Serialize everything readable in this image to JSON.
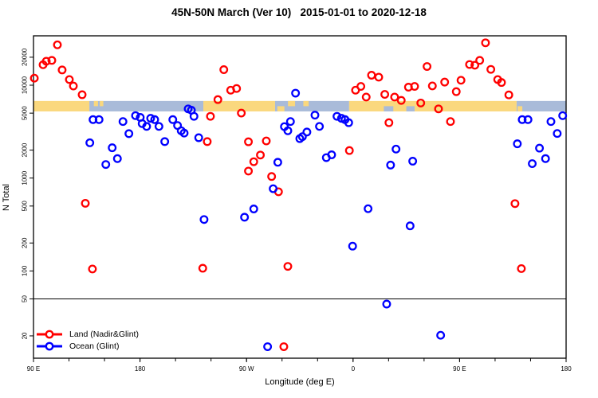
{
  "chart_data": {
    "type": "scatter",
    "title": "45N-50N March (Ver 10)   2015-01-01 to 2020-12-18",
    "xlabel": "Longitude (deg E)",
    "ylabel": "N Total",
    "x_axis": {
      "range": [
        90,
        540
      ],
      "minor_tick_step": 30,
      "ticks": [
        {
          "pos": 90,
          "label": "90 E"
        },
        {
          "pos": 180,
          "label": "180"
        },
        {
          "pos": 270,
          "label": "90 W"
        },
        {
          "pos": 360,
          "label": "0"
        },
        {
          "pos": 450,
          "label": "90 E"
        },
        {
          "pos": 540,
          "label": "180"
        }
      ]
    },
    "y_axis": {
      "scale": "log",
      "range": [
        11.5,
        34000
      ],
      "ticks": [
        {
          "pos": 20000,
          "label": "20000"
        },
        {
          "pos": 10000,
          "label": "10000"
        },
        {
          "pos": 5000,
          "label": "5000"
        },
        {
          "pos": 2000,
          "label": "2000"
        },
        {
          "pos": 1000,
          "label": "1000"
        },
        {
          "pos": 500,
          "label": "500"
        },
        {
          "pos": 200,
          "label": "200"
        },
        {
          "pos": 100,
          "label": "100"
        },
        {
          "pos": 50,
          "label": "50"
        },
        {
          "pos": 20,
          "label": "20"
        }
      ]
    },
    "reference_line": {
      "y": 50,
      "color": "#000000"
    },
    "map_band": {
      "value_top": 6760,
      "value_bottom": 5220,
      "colors": {
        "land": "#fad87e",
        "ocean": "#a9bbd9"
      },
      "segments": [
        {
          "from": 90,
          "to": 137.2,
          "type": "land"
        },
        {
          "from": 137.2,
          "to": 233.5,
          "type": "ocean"
        },
        {
          "from": 233.5,
          "to": 294.1,
          "type": "land"
        },
        {
          "from": 294.1,
          "to": 356.7,
          "type": "ocean"
        },
        {
          "from": 356.7,
          "to": 498.2,
          "type": "land"
        },
        {
          "from": 498.2,
          "to": 540,
          "type": "ocean"
        }
      ],
      "patches": [
        {
          "from": 141,
          "to": 144.5,
          "type": "land",
          "band": "top"
        },
        {
          "from": 146,
          "to": 149,
          "type": "land",
          "band": "top"
        },
        {
          "from": 296,
          "to": 302,
          "type": "land",
          "band": "bottom"
        },
        {
          "from": 305,
          "to": 311,
          "type": "land",
          "band": "top"
        },
        {
          "from": 318,
          "to": 322.5,
          "type": "land",
          "band": "top"
        },
        {
          "from": 386,
          "to": 394,
          "type": "ocean",
          "band": "bottom"
        },
        {
          "from": 405,
          "to": 412,
          "type": "ocean",
          "band": "bottom"
        },
        {
          "from": 499,
          "to": 503,
          "type": "land",
          "band": "bottom"
        }
      ]
    },
    "series": [
      {
        "name": "Land (Nadir&Glint)",
        "color": "#ff0000",
        "points": [
          [
            90.7,
            11900
          ],
          [
            98.1,
            16600
          ],
          [
            100.8,
            18100
          ],
          [
            105.5,
            18500
          ],
          [
            110.2,
            27200
          ],
          [
            114.2,
            14600
          ],
          [
            120.3,
            11500
          ],
          [
            123.7,
            9800
          ],
          [
            131.1,
            7900
          ],
          [
            133.8,
            535
          ],
          [
            139.8,
            105
          ],
          [
            233,
            107
          ],
          [
            236.8,
            2470
          ],
          [
            239.5,
            4620
          ],
          [
            245.8,
            7000
          ],
          [
            250.8,
            14700
          ],
          [
            256.6,
            8830
          ],
          [
            261.6,
            9210
          ],
          [
            265.6,
            5010
          ],
          [
            271.6,
            2460
          ],
          [
            271.6,
            1190
          ],
          [
            276.1,
            1500
          ],
          [
            281.7,
            1770
          ],
          [
            286.7,
            2510
          ],
          [
            291.2,
            1040
          ],
          [
            297,
            712
          ],
          [
            301.5,
            15.3
          ],
          [
            304.9,
            112
          ],
          [
            356.9,
            1980
          ],
          [
            362.1,
            8830
          ],
          [
            366.6,
            9700
          ],
          [
            371.1,
            7450
          ],
          [
            375.6,
            12800
          ],
          [
            381.7,
            12200
          ],
          [
            386.8,
            7960
          ],
          [
            390.3,
            3950
          ],
          [
            395.1,
            7450
          ],
          [
            400.7,
            6860
          ],
          [
            406.8,
            9520
          ],
          [
            412,
            9700
          ],
          [
            417.2,
            6430
          ],
          [
            422.5,
            15900
          ],
          [
            427,
            9820
          ],
          [
            432.2,
            5560
          ],
          [
            437.4,
            10800
          ],
          [
            442.3,
            4060
          ],
          [
            447.2,
            8520
          ],
          [
            451.2,
            11300
          ],
          [
            458.4,
            16700
          ],
          [
            462.9,
            16400
          ],
          [
            467,
            18500
          ],
          [
            471.9,
            28600
          ],
          [
            476.4,
            14800
          ],
          [
            482.2,
            11500
          ],
          [
            485.4,
            10700
          ],
          [
            491.6,
            7860
          ],
          [
            496.8,
            531
          ],
          [
            502.2,
            106
          ]
        ]
      },
      {
        "name": "Ocean (Glint)",
        "color": "#0000ff",
        "points": [
          [
            137.6,
            2400
          ],
          [
            140.3,
            4260
          ],
          [
            145.4,
            4260
          ],
          [
            151.1,
            1400
          ],
          [
            156.5,
            2120
          ],
          [
            160.9,
            1620
          ],
          [
            165.6,
            4060
          ],
          [
            170.6,
            3010
          ],
          [
            176.2,
            4700
          ],
          [
            180.2,
            4500
          ],
          [
            181.8,
            3860
          ],
          [
            185.6,
            3600
          ],
          [
            189,
            4400
          ],
          [
            192.4,
            4260
          ],
          [
            196,
            3600
          ],
          [
            200.9,
            2470
          ],
          [
            207.7,
            4260
          ],
          [
            211.7,
            3680
          ],
          [
            214.8,
            3230
          ],
          [
            217.3,
            3050
          ],
          [
            220.7,
            5560
          ],
          [
            223.4,
            5380
          ],
          [
            225.6,
            4620
          ],
          [
            229.6,
            2720
          ],
          [
            234.1,
            358
          ],
          [
            268.3,
            379
          ],
          [
            276.1,
            465
          ],
          [
            287.8,
            15.3
          ],
          [
            292.5,
            768
          ],
          [
            296.4,
            1480
          ],
          [
            302,
            3580
          ],
          [
            304.9,
            3230
          ],
          [
            307.1,
            4060
          ],
          [
            311.4,
            8210
          ],
          [
            315,
            2660
          ],
          [
            317.2,
            2790
          ],
          [
            321,
            3130
          ],
          [
            327.8,
            4760
          ],
          [
            331.6,
            3600
          ],
          [
            337.4,
            1660
          ],
          [
            341.9,
            1780
          ],
          [
            346.4,
            4620
          ],
          [
            350.2,
            4400
          ],
          [
            353.2,
            4260
          ],
          [
            356.3,
            3950
          ],
          [
            359.6,
            185
          ],
          [
            372.7,
            468
          ],
          [
            388.4,
            44
          ],
          [
            391.7,
            1380
          ],
          [
            396.3,
            2050
          ],
          [
            408.2,
            306
          ],
          [
            410.4,
            1520
          ],
          [
            434,
            20.3
          ],
          [
            498.8,
            2340
          ],
          [
            502.9,
            4260
          ],
          [
            507.8,
            4260
          ],
          [
            511.4,
            1430
          ],
          [
            517.5,
            2100
          ],
          [
            522.6,
            1620
          ],
          [
            527.2,
            4060
          ],
          [
            532.5,
            3020
          ],
          [
            537.1,
            4700
          ]
        ]
      }
    ],
    "legend": {
      "position": "bottom-left"
    }
  }
}
